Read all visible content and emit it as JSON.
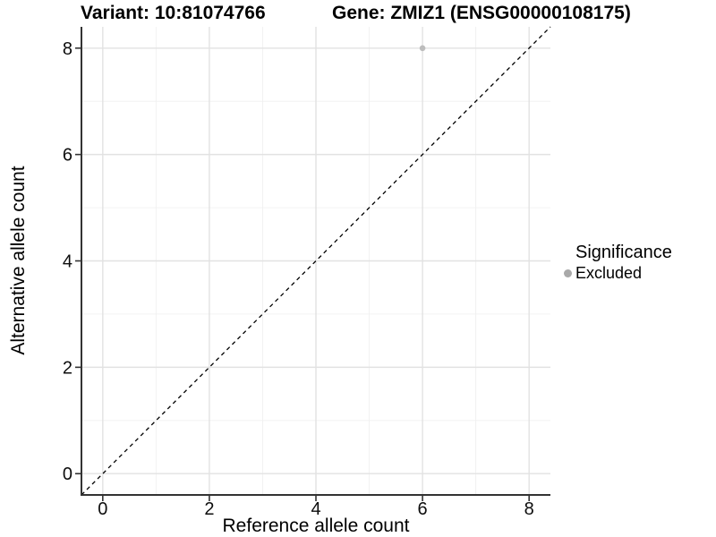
{
  "chart_data": {
    "type": "scatter",
    "title_variant": "Variant: 10:81074766",
    "title_gene": "Gene: ZMIZ1 (ENSG00000108175)",
    "xlabel": "Reference allele count",
    "ylabel": "Alternative allele count",
    "xlim": [
      -0.4,
      8.4
    ],
    "ylim": [
      -0.4,
      8.4
    ],
    "xticks": [
      0,
      2,
      4,
      6,
      8
    ],
    "yticks": [
      0,
      2,
      4,
      6,
      8
    ],
    "minor_ticks": [
      1,
      3,
      5,
      7
    ],
    "grid": true,
    "points": [
      {
        "x": 6,
        "y": 8,
        "significance": "Excluded"
      }
    ],
    "identity_line": {
      "style": "dashed",
      "from": [
        -0.4,
        -0.4
      ],
      "to": [
        8.4,
        8.4
      ]
    },
    "legend": {
      "position": "right",
      "title": "Significance",
      "items": [
        {
          "label": "Excluded",
          "color": "#a9a9a9"
        }
      ]
    },
    "colors": {
      "point": "#bdbdbd",
      "identity_line": "#000000",
      "axis": "#333333",
      "tick_label": "#0d0d0d",
      "grid_major": "#e2e2e2",
      "grid_minor": "#f0f0f0"
    }
  }
}
